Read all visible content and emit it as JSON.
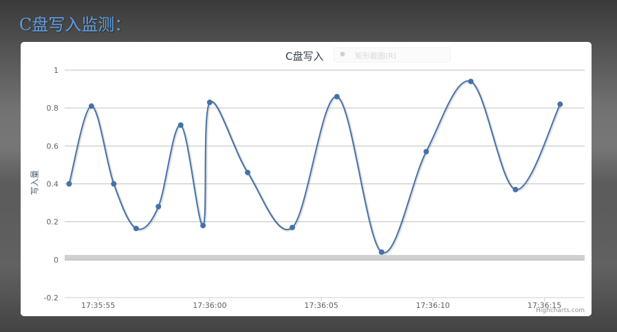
{
  "page_title": "C盘写入监测：",
  "export_button": {
    "label": "矩形截图(R)"
  },
  "credits": "Highcharts.com",
  "colors": {
    "series": "#4572a7",
    "plot_band": "#d0d0d0",
    "grid": "#c0c0c0",
    "title": "#5f9fe0"
  },
  "chart_data": {
    "type": "line",
    "title": "C盘写入",
    "xlabel": "",
    "ylabel": "写入量",
    "ylim": [
      -0.2,
      1
    ],
    "yticks": [
      "-0.2",
      "0",
      "0.2",
      "0.4",
      "0.6",
      "0.8",
      "1"
    ],
    "xlim": [
      "17:35:53.5",
      "17:36:16.8"
    ],
    "xticks": [
      "17:35:55",
      "17:36:00",
      "17:36:05",
      "17:36:10",
      "17:36:15"
    ],
    "grid": true,
    "plot_band": {
      "from": -0.005,
      "to": 0.025
    },
    "series": [
      {
        "x": [
          "17:35:53.7",
          "17:35:54.7",
          "17:35:55.7",
          "17:35:56.7",
          "17:35:57.7",
          "17:35:58.7",
          "17:35:59.7",
          "17:36:00.0",
          "17:36:01.7",
          "17:36:03.7",
          "17:36:05.7",
          "17:36:07.7",
          "17:36:09.7",
          "17:36:11.7",
          "17:36:13.7",
          "17:36:15.7"
        ],
        "y": [
          0.4,
          0.81,
          0.4,
          0.165,
          0.28,
          0.71,
          0.18,
          0.83,
          0.46,
          0.17,
          0.86,
          0.04,
          0.57,
          0.94,
          0.37,
          0.82
        ]
      }
    ]
  }
}
